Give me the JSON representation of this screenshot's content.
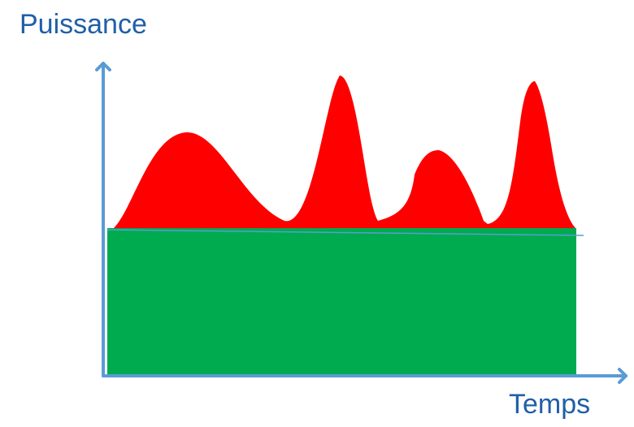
{
  "diagram": {
    "y_axis_label": "Puissance",
    "x_axis_label": "Temps"
  },
  "colors": {
    "axis": "#5b9bd5",
    "base_load": "#00aa4f",
    "peak_load": "#ff0000",
    "label_text": "#1f5fa8"
  }
}
